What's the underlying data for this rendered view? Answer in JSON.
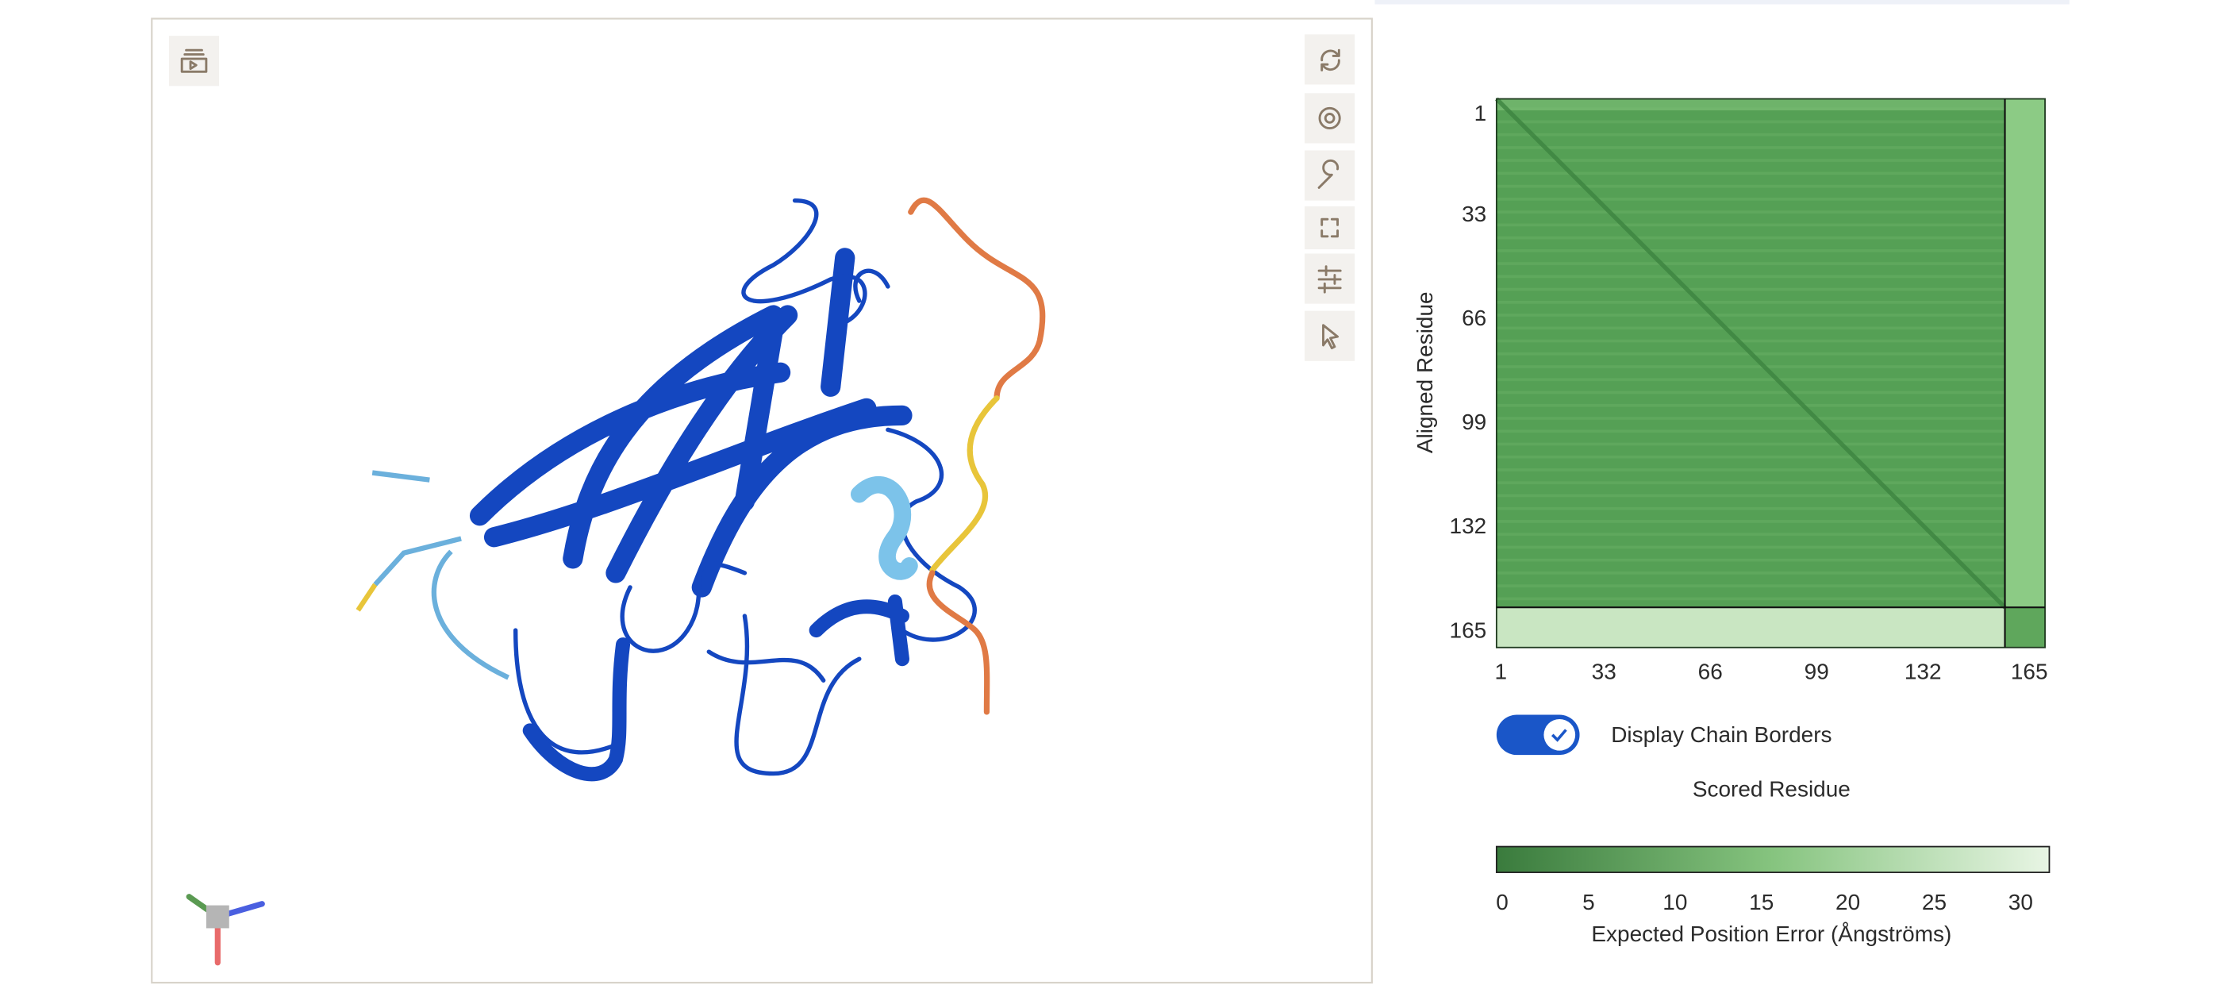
{
  "pae_plot": {
    "y_label": "Aligned Residue",
    "x_label": "Scored Residue",
    "yticks": [
      1,
      33,
      66,
      99,
      132,
      165
    ],
    "xticks": [
      1,
      33,
      66,
      99,
      132,
      165
    ],
    "toggle_label": "Display Chain Borders",
    "toggle_on": true
  },
  "colorbar": {
    "ticks": [
      0,
      5,
      10,
      15,
      20,
      25,
      30
    ],
    "label": "Expected Position Error (Ångströms)"
  }
}
